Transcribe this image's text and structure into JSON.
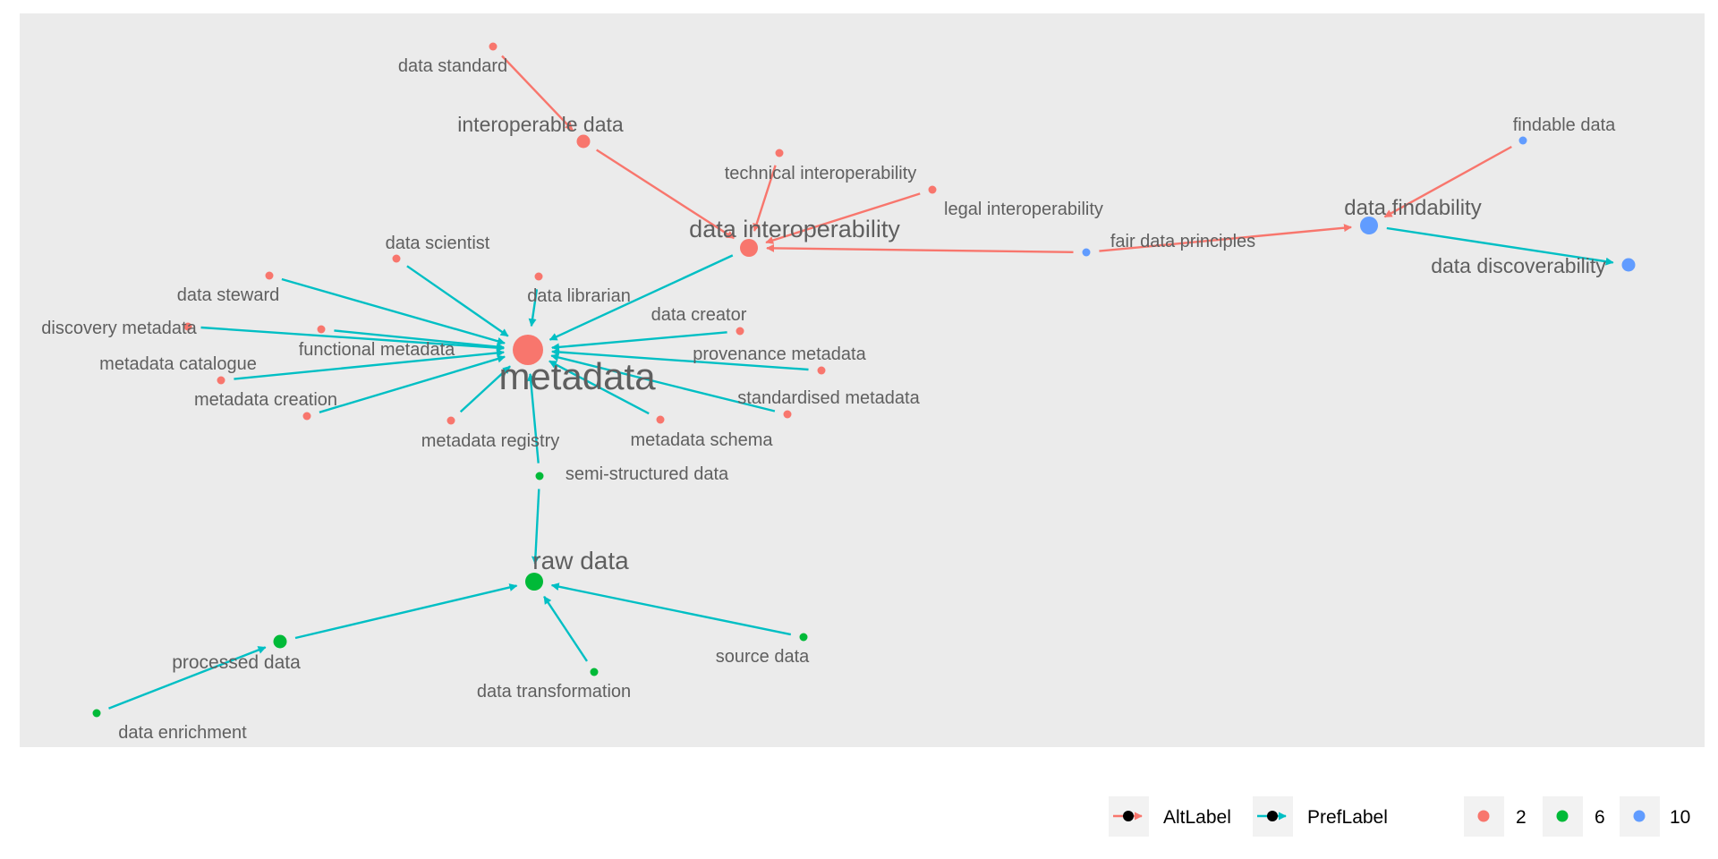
{
  "colors": {
    "panel": "#ebebeb",
    "key_bg": "#f2f2f2",
    "altlabel": "#f8766d",
    "preflabel": "#00bfc4",
    "group_2": "#f8766d",
    "group_6": "#00ba38",
    "group_10": "#619cff",
    "label_text": "#5f5f5f"
  },
  "nodes": [
    {
      "id": "data_standard",
      "label": "data standard",
      "group": "2",
      "size": "small"
    },
    {
      "id": "interoperable_data",
      "label": "interoperable data",
      "group": "2",
      "size": "medium"
    },
    {
      "id": "technical_interoperability",
      "label": "technical interoperability",
      "group": "2",
      "size": "small"
    },
    {
      "id": "legal_interoperability",
      "label": "legal interoperability",
      "group": "2",
      "size": "small"
    },
    {
      "id": "data_interoperability",
      "label": "data interoperability",
      "group": "2",
      "size": "large"
    },
    {
      "id": "fair_data_principles",
      "label": "fair data principles",
      "group": "10",
      "size": "small"
    },
    {
      "id": "data_findability",
      "label": "data findability",
      "group": "10",
      "size": "large"
    },
    {
      "id": "findable_data",
      "label": "findable data",
      "group": "10",
      "size": "small"
    },
    {
      "id": "data_discoverability",
      "label": "data discoverability",
      "group": "10",
      "size": "medium"
    },
    {
      "id": "data_scientist",
      "label": "data scientist",
      "group": "2",
      "size": "small"
    },
    {
      "id": "data_steward",
      "label": "data steward",
      "group": "2",
      "size": "small"
    },
    {
      "id": "data_librarian",
      "label": "data librarian",
      "group": "2",
      "size": "small"
    },
    {
      "id": "discovery_metadata",
      "label": "discovery metadata",
      "group": "2",
      "size": "small"
    },
    {
      "id": "functional_metadata",
      "label": "functional metadata",
      "group": "2",
      "size": "small"
    },
    {
      "id": "data_creator",
      "label": "data creator",
      "group": "2",
      "size": "small"
    },
    {
      "id": "metadata",
      "label": "metadata",
      "group": "2",
      "size": "hub"
    },
    {
      "id": "provenance_metadata",
      "label": "provenance metadata",
      "group": "2",
      "size": "small"
    },
    {
      "id": "metadata_catalogue",
      "label": "metadata catalogue",
      "group": "2",
      "size": "small"
    },
    {
      "id": "metadata_creation",
      "label": "metadata creation",
      "group": "2",
      "size": "small"
    },
    {
      "id": "standardised_metadata",
      "label": "standardised metadata",
      "group": "2",
      "size": "small"
    },
    {
      "id": "metadata_registry",
      "label": "metadata registry",
      "group": "2",
      "size": "small"
    },
    {
      "id": "metadata_schema",
      "label": "metadata schema",
      "group": "2",
      "size": "small"
    },
    {
      "id": "semi_structured_data",
      "label": "semi-structured data",
      "group": "6",
      "size": "small"
    },
    {
      "id": "raw_data",
      "label": "raw data",
      "group": "6",
      "size": "large"
    },
    {
      "id": "processed_data",
      "label": "processed data",
      "group": "6",
      "size": "medium"
    },
    {
      "id": "source_data",
      "label": "source data",
      "group": "6",
      "size": "small"
    },
    {
      "id": "data_transformation",
      "label": "data transformation",
      "group": "6",
      "size": "small"
    },
    {
      "id": "data_enrichment",
      "label": "data enrichment",
      "group": "6",
      "size": "small"
    }
  ],
  "edges": [
    {
      "from": "data_standard",
      "to": "interoperable_data",
      "type": "AltLabel"
    },
    {
      "from": "interoperable_data",
      "to": "data_interoperability",
      "type": "AltLabel"
    },
    {
      "from": "technical_interoperability",
      "to": "data_interoperability",
      "type": "AltLabel"
    },
    {
      "from": "legal_interoperability",
      "to": "data_interoperability",
      "type": "AltLabel"
    },
    {
      "from": "fair_data_principles",
      "to": "data_interoperability",
      "type": "AltLabel"
    },
    {
      "from": "fair_data_principles",
      "to": "data_findability",
      "type": "AltLabel"
    },
    {
      "from": "findable_data",
      "to": "data_findability",
      "type": "AltLabel"
    },
    {
      "from": "data_findability",
      "to": "data_discoverability",
      "type": "PrefLabel"
    },
    {
      "from": "data_interoperability",
      "to": "metadata",
      "type": "PrefLabel"
    },
    {
      "from": "data_scientist",
      "to": "metadata",
      "type": "PrefLabel"
    },
    {
      "from": "data_steward",
      "to": "metadata",
      "type": "PrefLabel"
    },
    {
      "from": "data_librarian",
      "to": "metadata",
      "type": "PrefLabel"
    },
    {
      "from": "discovery_metadata",
      "to": "metadata",
      "type": "PrefLabel"
    },
    {
      "from": "functional_metadata",
      "to": "metadata",
      "type": "PrefLabel"
    },
    {
      "from": "data_creator",
      "to": "metadata",
      "type": "PrefLabel"
    },
    {
      "from": "provenance_metadata",
      "to": "metadata",
      "type": "PrefLabel"
    },
    {
      "from": "metadata_catalogue",
      "to": "metadata",
      "type": "PrefLabel"
    },
    {
      "from": "metadata_creation",
      "to": "metadata",
      "type": "PrefLabel"
    },
    {
      "from": "standardised_metadata",
      "to": "metadata",
      "type": "PrefLabel"
    },
    {
      "from": "metadata_registry",
      "to": "metadata",
      "type": "PrefLabel"
    },
    {
      "from": "metadata_schema",
      "to": "metadata",
      "type": "PrefLabel"
    },
    {
      "from": "semi_structured_data",
      "to": "metadata",
      "type": "PrefLabel"
    },
    {
      "from": "semi_structured_data",
      "to": "raw_data",
      "type": "PrefLabel"
    },
    {
      "from": "processed_data",
      "to": "raw_data",
      "type": "PrefLabel"
    },
    {
      "from": "source_data",
      "to": "raw_data",
      "type": "PrefLabel"
    },
    {
      "from": "data_transformation",
      "to": "raw_data",
      "type": "PrefLabel"
    },
    {
      "from": "data_enrichment",
      "to": "processed_data",
      "type": "PrefLabel"
    }
  ],
  "legend": {
    "edge_types": [
      {
        "label": "AltLabel",
        "color": "#f8766d"
      },
      {
        "label": "PrefLabel",
        "color": "#00bfc4"
      }
    ],
    "groups": [
      {
        "label": "2",
        "color": "#f8766d"
      },
      {
        "label": "6",
        "color": "#00ba38"
      },
      {
        "label": "10",
        "color": "#619cff"
      }
    ]
  }
}
